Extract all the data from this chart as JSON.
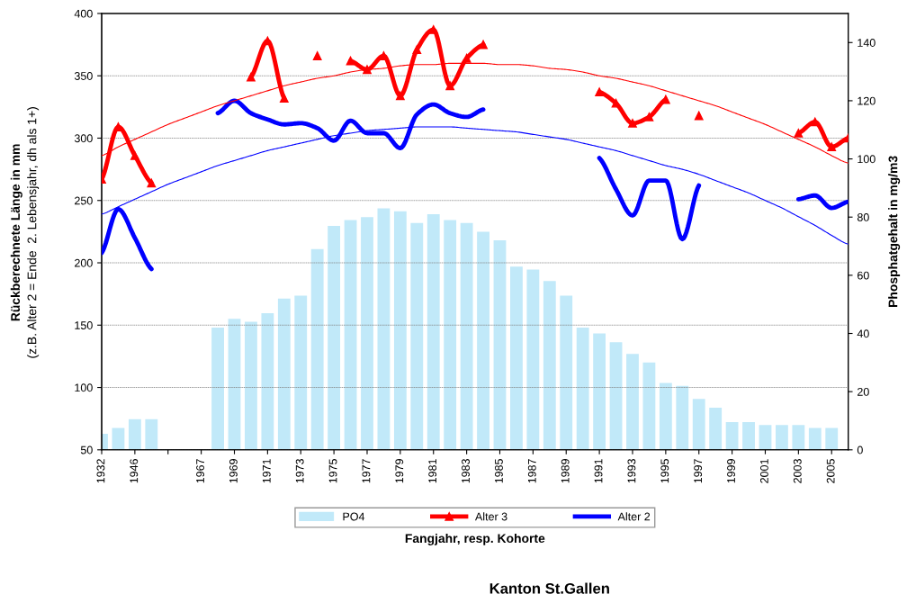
{
  "chart_data": {
    "type": "bar",
    "xlabel": "Fangjahr, resp. Kohorte",
    "ylabel": "Rückberechnete Länge in mm\n(z.B. Alter 2 = Ende  2. Lebensjahr, dh als 1+)",
    "y2label": "Phosphatgehalt in mg/m3",
    "annotations": [
      "Kanton St.Gallen"
    ],
    "categories": [
      "1932",
      null,
      "1946",
      null,
      null,
      null,
      "1967",
      null,
      "1969",
      null,
      "1971",
      null,
      "1973",
      null,
      "1975",
      null,
      "1977",
      null,
      "1979",
      null,
      "1981",
      null,
      "1983",
      null,
      "1985",
      null,
      "1987",
      null,
      "1989",
      null,
      "1991",
      null,
      "1993",
      null,
      "1995",
      null,
      "1997",
      null,
      "1999",
      null,
      "2001",
      null,
      "2003",
      null,
      "2005",
      null
    ],
    "ylim": [
      50,
      400
    ],
    "yticks": [
      50,
      100,
      150,
      200,
      250,
      300,
      350,
      400
    ],
    "y2lim": [
      0,
      150
    ],
    "y2ticks": [
      0,
      20,
      40,
      60,
      80,
      100,
      120,
      140
    ],
    "grid": "y",
    "legend": "bottom",
    "series": [
      {
        "name": "PO4",
        "axis": "y2",
        "color": "#c1e9f9",
        "values": [
          5.5,
          7.5,
          10.5,
          10.5,
          null,
          null,
          null,
          42,
          45,
          44,
          47,
          52,
          53,
          69,
          77,
          79,
          80,
          83,
          82,
          78,
          81,
          79,
          78,
          75,
          72,
          63,
          62,
          58,
          53,
          42,
          40,
          37,
          33,
          30,
          23,
          22,
          17.5,
          14.5,
          9.5,
          9.5,
          8.5,
          8.5,
          8.5,
          7.5,
          7.5,
          null
        ]
      },
      {
        "name": "Alter 3",
        "type": "line",
        "axis": "y",
        "color": "#ff0000",
        "marker": "triangle",
        "line_style": "solid",
        "values": [
          267,
          309,
          286,
          264,
          null,
          null,
          null,
          null,
          null,
          349,
          378,
          332,
          null,
          366,
          null,
          362,
          355,
          366,
          334,
          371,
          387,
          342,
          364,
          375,
          null,
          null,
          null,
          null,
          null,
          null,
          337,
          328,
          312,
          317,
          331,
          null,
          318,
          null,
          null,
          null,
          null,
          null,
          304,
          313,
          293,
          300
        ]
      },
      {
        "name": "Alter 2",
        "type": "line",
        "axis": "y",
        "color": "#0000ff",
        "marker": "none",
        "line_style": "solid",
        "values": [
          208,
          243,
          220,
          195,
          null,
          null,
          null,
          320,
          330,
          320,
          315,
          311,
          312,
          308,
          298,
          314,
          304,
          304,
          292,
          319,
          327,
          320,
          317,
          323,
          null,
          null,
          null,
          null,
          null,
          null,
          284,
          259,
          238,
          266,
          266,
          219,
          262,
          null,
          null,
          null,
          null,
          null,
          251,
          254,
          244,
          249
        ]
      },
      {
        "type": "line",
        "axis": "y",
        "color": "#ff0000",
        "marker": "none",
        "line_style": "solid",
        "values": [
          286,
          293,
          299,
          305,
          311,
          316,
          321,
          326,
          330,
          334,
          338,
          342,
          345,
          348,
          350,
          353,
          355,
          356,
          358,
          359,
          359,
          360,
          360,
          360,
          359,
          359,
          358,
          356,
          355,
          353,
          350,
          348,
          345,
          342,
          338,
          334,
          330,
          326,
          321,
          316,
          311,
          305,
          299,
          293,
          286,
          280
        ]
      },
      {
        "type": "line",
        "axis": "y",
        "color": "#0000ff",
        "marker": "none",
        "line_style": "solid",
        "values": [
          239,
          245,
          251,
          257,
          263,
          268,
          273,
          278,
          282,
          286,
          290,
          293,
          296,
          299,
          302,
          304,
          306,
          307,
          308,
          309,
          309,
          309,
          308,
          307,
          306,
          305,
          303,
          301,
          299,
          296,
          293,
          290,
          286,
          282,
          278,
          275,
          271,
          266,
          261,
          256,
          250,
          244,
          237,
          230,
          222,
          215
        ]
      }
    ]
  }
}
